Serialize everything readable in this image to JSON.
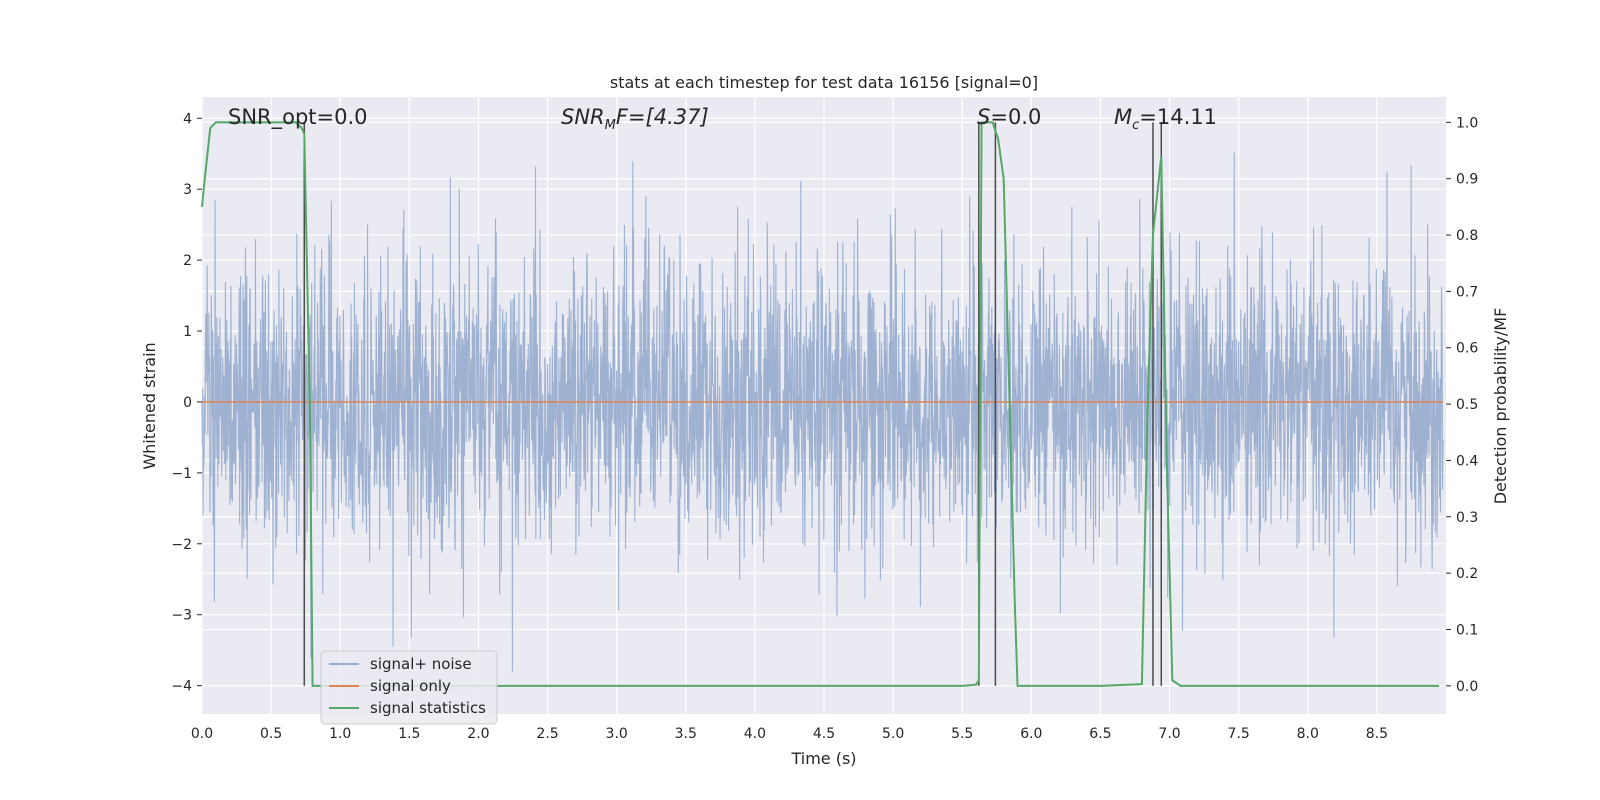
{
  "chart_data": {
    "type": "line",
    "title": "stats at each timestep for test data 16156 [signal=0]",
    "xlabel": "Time (s)",
    "ylabel": "Whitened strain",
    "ylabel_right": "Detection probability/MF",
    "xlim": [
      0.0,
      9.0
    ],
    "ylim": [
      -4.4,
      4.3
    ],
    "ylim_right": [
      -0.05,
      1.045
    ],
    "x_ticks": [
      "0.0",
      "0.5",
      "1.0",
      "1.5",
      "2.0",
      "2.5",
      "3.0",
      "3.5",
      "4.0",
      "4.5",
      "5.0",
      "5.5",
      "6.0",
      "6.5",
      "7.0",
      "7.5",
      "8.0",
      "8.5"
    ],
    "y_ticks": [
      "4",
      "3",
      "2",
      "1",
      "0",
      "−1",
      "−2",
      "−3",
      "−4"
    ],
    "y_right_ticks": [
      "1.0",
      "0.9",
      "0.8",
      "0.7",
      "0.6",
      "0.5",
      "0.4",
      "0.3",
      "0.2",
      "0.1",
      "0.0"
    ],
    "grid": true,
    "legend_position": "lower-left",
    "annotations": {
      "snr_opt": "SNR_opt=0.0",
      "snr_mf_name": "SNR",
      "snr_mf_sub": "M",
      "snr_mf_tail": "F=[4.37]",
      "s_name": "S",
      "s_tail": "=0.0",
      "mc_name": "M",
      "mc_sub": "c",
      "mc_tail": "=14.11"
    },
    "series": [
      {
        "name": "signal+ noise",
        "color": "#9aaecf",
        "description_of_values": "whitened noise strain sampled densely, roughly Gaussian with amplitude within about -3.8 to 3.9"
      },
      {
        "name": "signal only",
        "color": "#dd8452",
        "values_constant": 0.0
      },
      {
        "name": "signal statistics",
        "color": "#55a868",
        "x": [
          0.0,
          0.02,
          0.06,
          0.1,
          0.2,
          0.4,
          0.6,
          0.68,
          0.72,
          0.74,
          0.78,
          0.8,
          1.5,
          3.0,
          4.5,
          5.5,
          5.6,
          5.62,
          5.64,
          5.68,
          5.72,
          5.76,
          5.8,
          5.88,
          5.9,
          6.5,
          6.8,
          6.84,
          6.88,
          6.94,
          6.98,
          7.02,
          7.08,
          7.5,
          8.0,
          8.95
        ],
        "values": [
          0.85,
          0.9,
          0.99,
          1.0,
          1.0,
          1.0,
          1.0,
          1.0,
          0.99,
          0.98,
          0.5,
          0.0,
          0.0,
          0.0,
          0.0,
          0.0,
          0.002,
          0.01,
          1.0,
          1.0,
          1.0,
          0.97,
          0.9,
          0.15,
          0.0,
          0.0,
          0.003,
          0.48,
          0.8,
          0.94,
          0.4,
          0.01,
          0.0,
          0.0,
          0.0,
          0.0
        ]
      }
    ],
    "vertical_lines_x": [
      0.74,
      5.62,
      5.74,
      6.88,
      6.94
    ],
    "vertical_lines_color": "#4c4c4c"
  }
}
